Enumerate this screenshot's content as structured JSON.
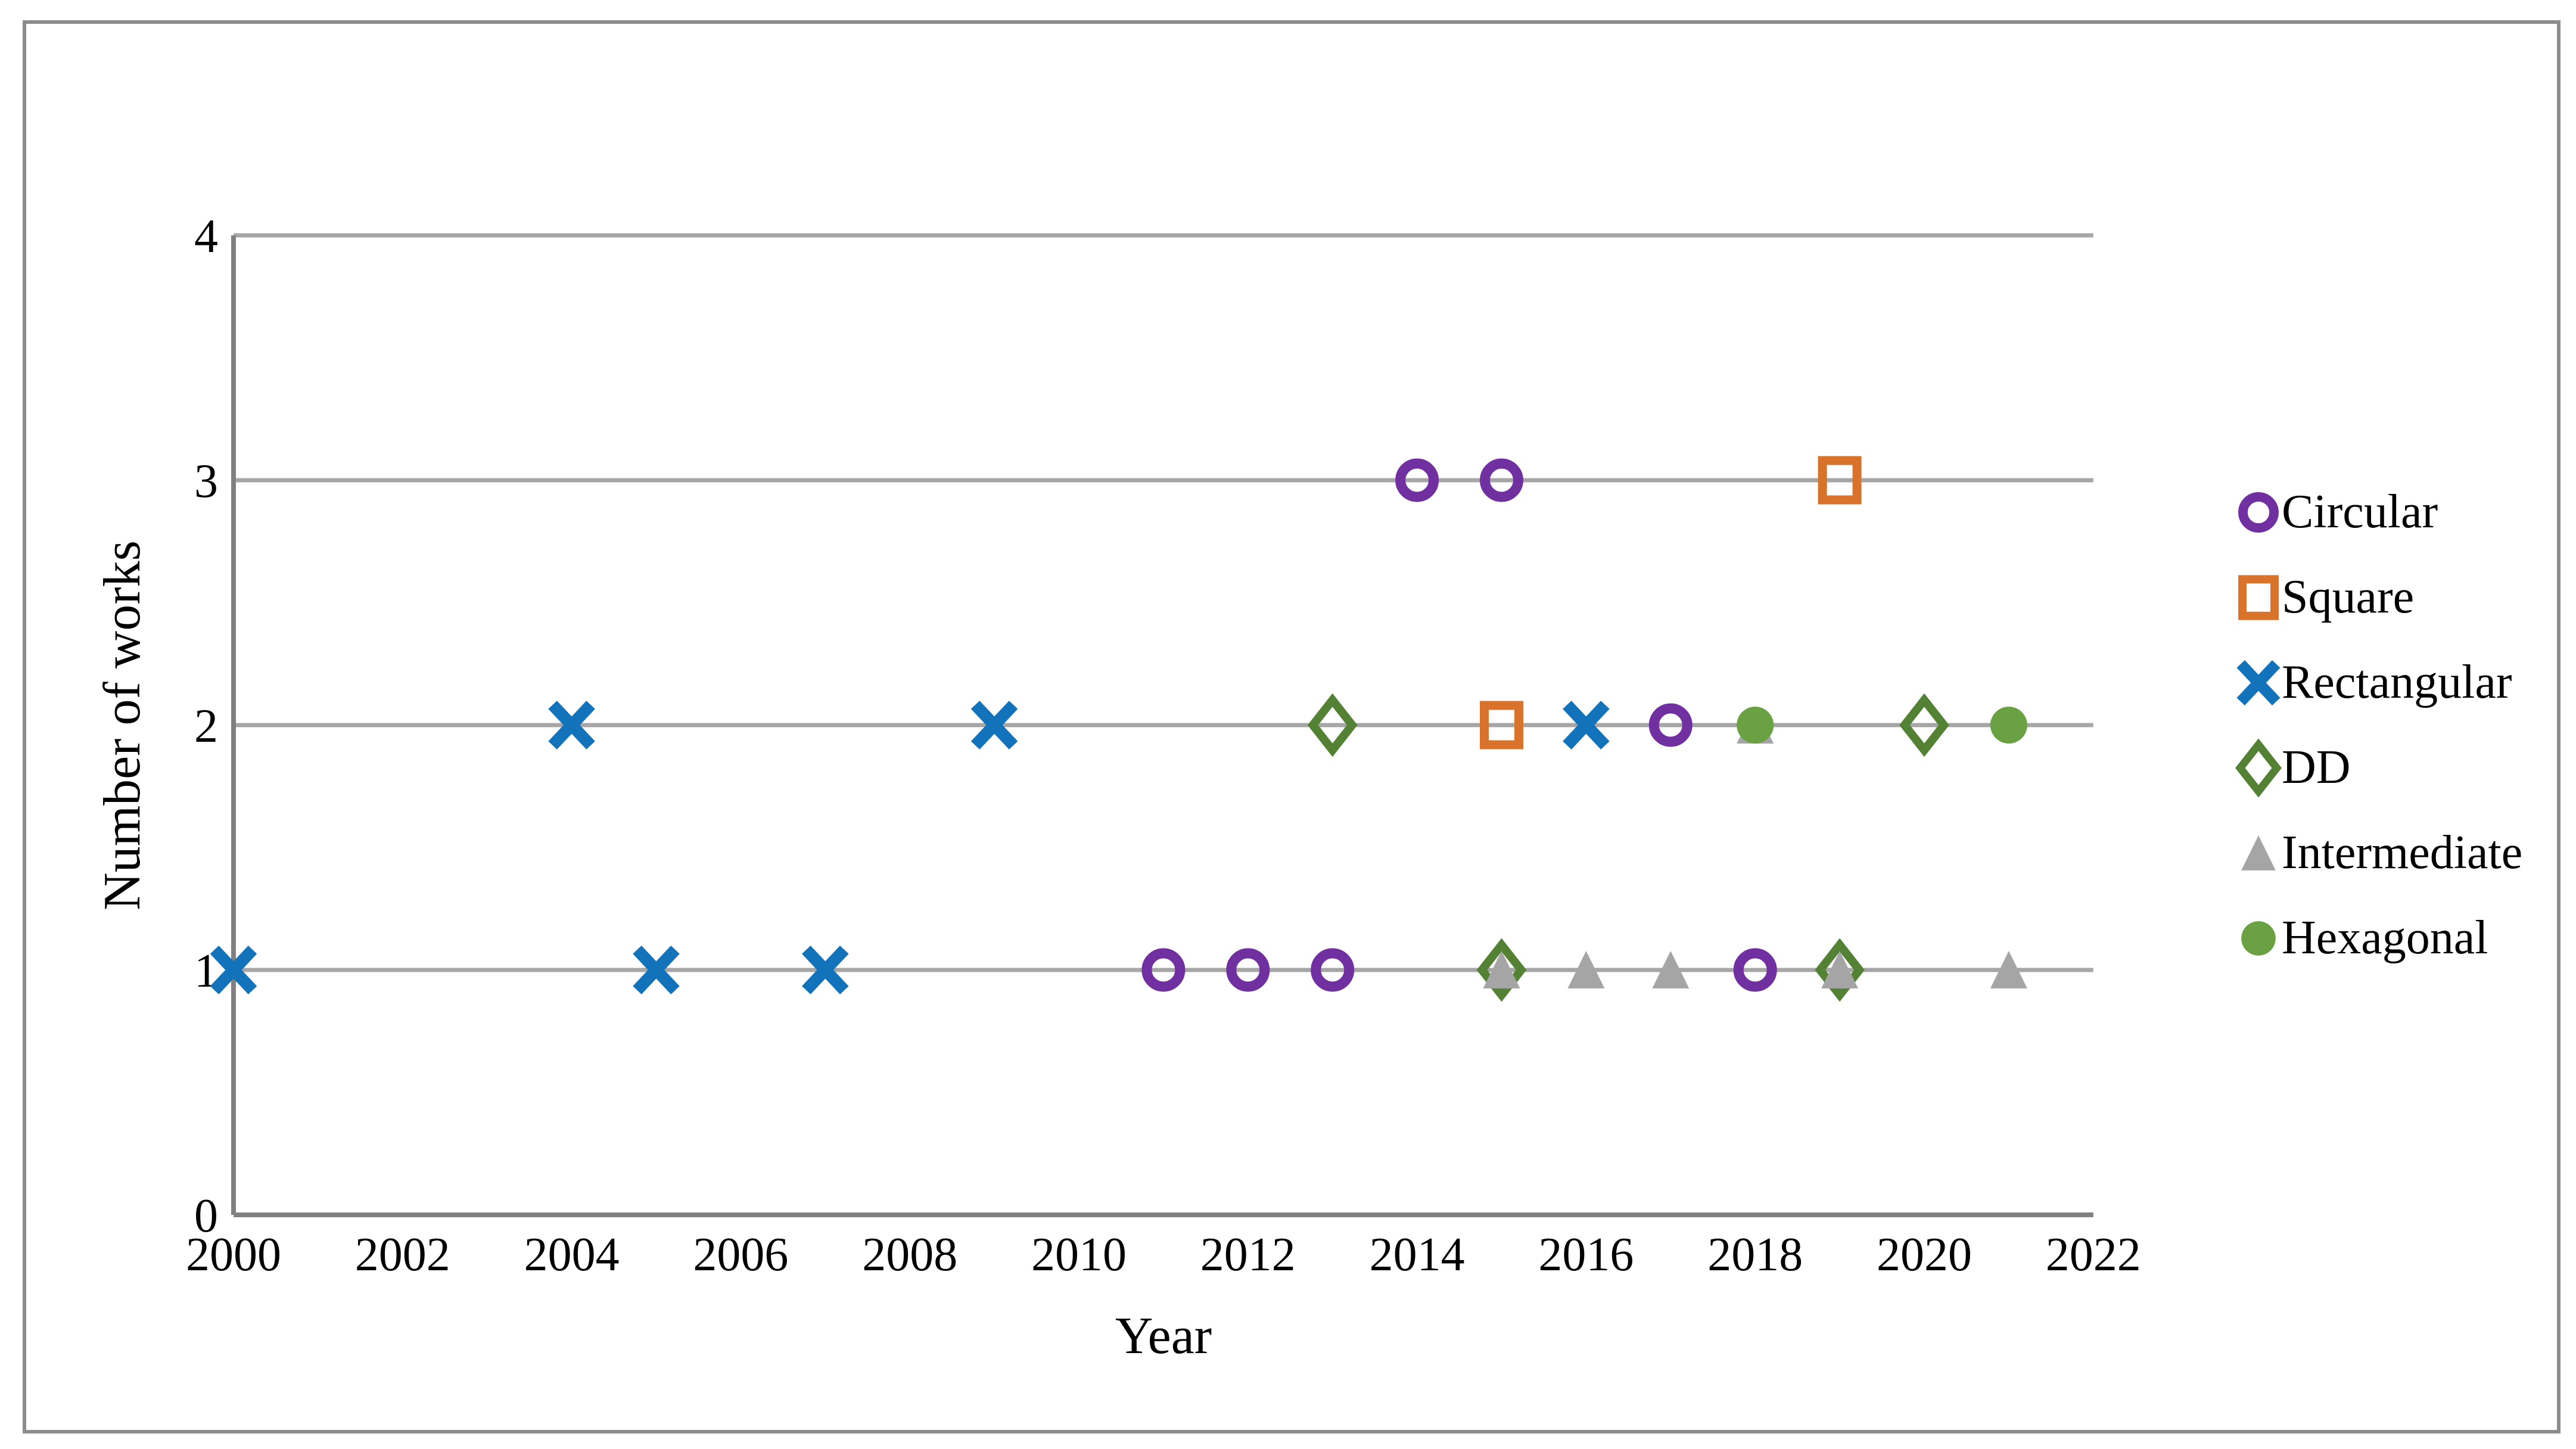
{
  "figure": {
    "background": "#ffffff",
    "border_color": "#8c8c8c"
  },
  "chart_data": {
    "type": "scatter",
    "title": "",
    "xlabel": "Year",
    "ylabel": "Number of works",
    "xlim": [
      2000,
      2022
    ],
    "ylim": [
      0,
      4
    ],
    "x_ticks": [
      "2000",
      "2002",
      "2004",
      "2006",
      "2008",
      "2010",
      "2012",
      "2014",
      "2016",
      "2018",
      "2020",
      "2022"
    ],
    "y_ticks": [
      "0",
      "1",
      "2",
      "3",
      "4"
    ],
    "grid": "horizontal-only",
    "legend_position": "right",
    "colors": {
      "gridline": "#a6a6a6",
      "axis": "#808080",
      "text": "#000000"
    },
    "series": [
      {
        "name": "Circular",
        "marker": "open-circle",
        "color": "#7030a0",
        "points": [
          [
            2011,
            1
          ],
          [
            2012,
            1
          ],
          [
            2013,
            1
          ],
          [
            2014,
            3
          ],
          [
            2015,
            3
          ],
          [
            2017,
            2
          ],
          [
            2018,
            1
          ]
        ]
      },
      {
        "name": "Square",
        "marker": "open-square",
        "color": "#d9722b",
        "points": [
          [
            2015,
            2
          ],
          [
            2019,
            3
          ]
        ]
      },
      {
        "name": "Rectangular",
        "marker": "x-cross",
        "color": "#1272ba",
        "points": [
          [
            2000,
            1
          ],
          [
            2004,
            2
          ],
          [
            2005,
            1
          ],
          [
            2007,
            1
          ],
          [
            2009,
            2
          ],
          [
            2016,
            2
          ]
        ]
      },
      {
        "name": "DD",
        "marker": "open-diamond",
        "color": "#548235",
        "points": [
          [
            2013,
            2
          ],
          [
            2015,
            1
          ],
          [
            2019,
            1
          ],
          [
            2020,
            2
          ]
        ]
      },
      {
        "name": "Intermediate",
        "marker": "filled-triangle",
        "color": "#a5a5a5",
        "points": [
          [
            2015,
            1
          ],
          [
            2016,
            1
          ],
          [
            2017,
            1
          ],
          [
            2018,
            2
          ],
          [
            2019,
            1
          ],
          [
            2021,
            1
          ]
        ]
      },
      {
        "name": "Hexagonal",
        "marker": "filled-circle",
        "color": "#69a143",
        "points": [
          [
            2018,
            2
          ],
          [
            2021,
            2
          ]
        ]
      }
    ]
  }
}
